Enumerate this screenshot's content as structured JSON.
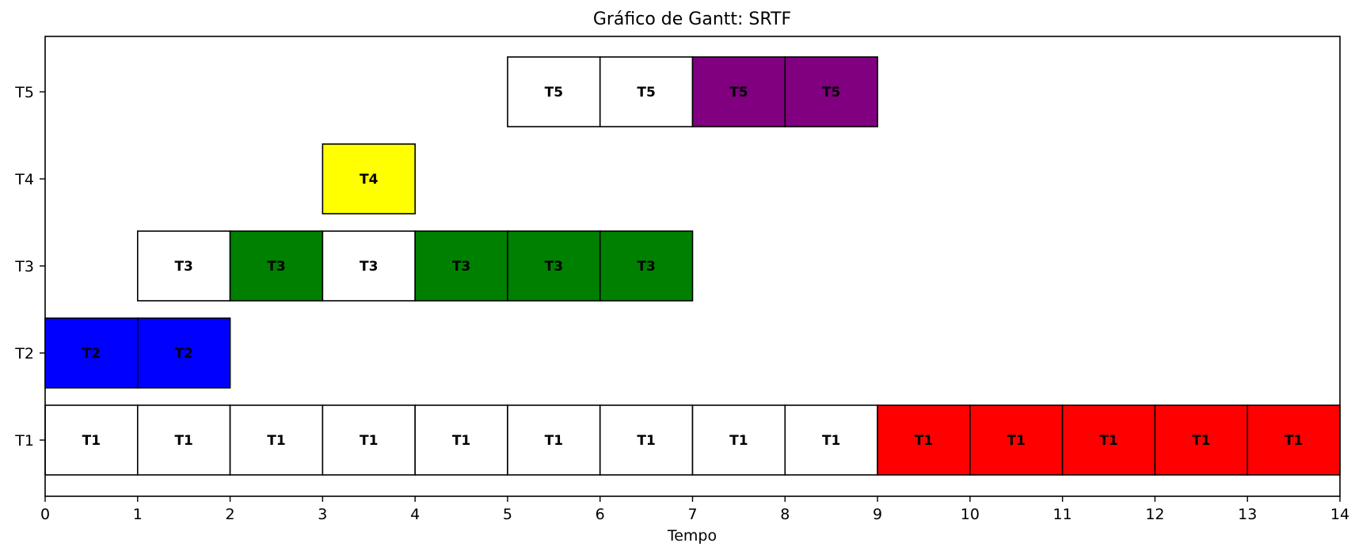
{
  "chart_data": {
    "type": "gantt",
    "title": "Gráfico de Gantt: SRTF",
    "xlabel": "Tempo",
    "ylabel": "",
    "xlim": [
      0,
      14
    ],
    "x_ticks": [
      0,
      1,
      2,
      3,
      4,
      5,
      6,
      7,
      8,
      9,
      10,
      11,
      12,
      13,
      14
    ],
    "tasks": [
      "T1",
      "T2",
      "T3",
      "T4",
      "T5"
    ],
    "grid": false,
    "colors": {
      "waiting": "#ffffff",
      "T1": "#ff0000",
      "T2": "#0000ff",
      "T3": "#008000",
      "T4": "#ffff00",
      "T5": "#800080"
    },
    "segments": [
      {
        "task": "T1",
        "start": 0,
        "state": "waiting",
        "label": "T1"
      },
      {
        "task": "T1",
        "start": 1,
        "state": "waiting",
        "label": "T1"
      },
      {
        "task": "T1",
        "start": 2,
        "state": "waiting",
        "label": "T1"
      },
      {
        "task": "T1",
        "start": 3,
        "state": "waiting",
        "label": "T1"
      },
      {
        "task": "T1",
        "start": 4,
        "state": "waiting",
        "label": "T1"
      },
      {
        "task": "T1",
        "start": 5,
        "state": "waiting",
        "label": "T1"
      },
      {
        "task": "T1",
        "start": 6,
        "state": "waiting",
        "label": "T1"
      },
      {
        "task": "T1",
        "start": 7,
        "state": "waiting",
        "label": "T1"
      },
      {
        "task": "T1",
        "start": 8,
        "state": "waiting",
        "label": "T1"
      },
      {
        "task": "T1",
        "start": 9,
        "state": "running",
        "label": "T1"
      },
      {
        "task": "T1",
        "start": 10,
        "state": "running",
        "label": "T1"
      },
      {
        "task": "T1",
        "start": 11,
        "state": "running",
        "label": "T1"
      },
      {
        "task": "T1",
        "start": 12,
        "state": "running",
        "label": "T1"
      },
      {
        "task": "T1",
        "start": 13,
        "state": "running",
        "label": "T1"
      },
      {
        "task": "T2",
        "start": 0,
        "state": "running",
        "label": "T2"
      },
      {
        "task": "T2",
        "start": 1,
        "state": "running",
        "label": "T2"
      },
      {
        "task": "T3",
        "start": 1,
        "state": "waiting",
        "label": "T3"
      },
      {
        "task": "T3",
        "start": 2,
        "state": "running",
        "label": "T3"
      },
      {
        "task": "T3",
        "start": 3,
        "state": "waiting",
        "label": "T3"
      },
      {
        "task": "T3",
        "start": 4,
        "state": "running",
        "label": "T3"
      },
      {
        "task": "T3",
        "start": 5,
        "state": "running",
        "label": "T3"
      },
      {
        "task": "T3",
        "start": 6,
        "state": "running",
        "label": "T3"
      },
      {
        "task": "T4",
        "start": 3,
        "state": "running",
        "label": "T4"
      },
      {
        "task": "T5",
        "start": 5,
        "state": "waiting",
        "label": "T5"
      },
      {
        "task": "T5",
        "start": 6,
        "state": "waiting",
        "label": "T5"
      },
      {
        "task": "T5",
        "start": 7,
        "state": "running",
        "label": "T5"
      },
      {
        "task": "T5",
        "start": 8,
        "state": "running",
        "label": "T5"
      }
    ]
  }
}
